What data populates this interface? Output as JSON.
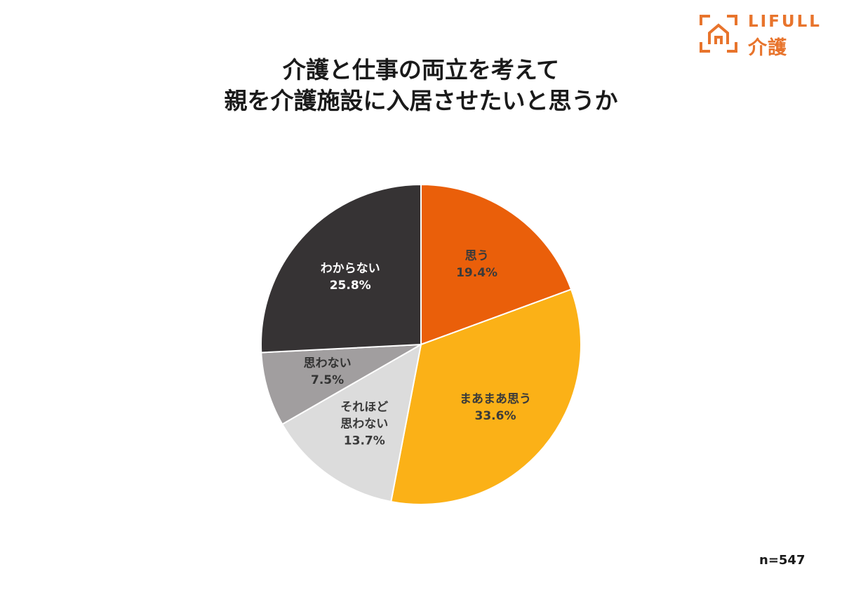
{
  "logo": {
    "brand_en": "LIFULL",
    "brand_jp": "介護",
    "color": "#e8742c",
    "icon": "house-frame-icon"
  },
  "title": {
    "line1": "介護と仕事の両立を考えて",
    "line2": "親を介護施設に入居させたいと思うか"
  },
  "sample_size": "n=547",
  "chart_data": {
    "type": "pie",
    "title": "介護と仕事の両立を考えて親を介護施設に入居させたいと思うか",
    "start": "12 o'clock",
    "direction": "clockwise",
    "slices": [
      {
        "label": [
          "思う"
        ],
        "value": 19.4,
        "value_label": "19.4%",
        "color": "#ea5f0a",
        "text_color": "#3a3a3a"
      },
      {
        "label": [
          "まあまあ思う"
        ],
        "value": 33.6,
        "value_label": "33.6%",
        "color": "#fbb117",
        "text_color": "#3a3a3a"
      },
      {
        "label": [
          "それほど",
          "思わない"
        ],
        "value": 13.7,
        "value_label": "13.7%",
        "color": "#dcdcdc",
        "text_color": "#3a3a3a"
      },
      {
        "label": [
          "思わない"
        ],
        "value": 7.5,
        "value_label": "7.5%",
        "color": "#a19e9f",
        "text_color": "#333333"
      },
      {
        "label": [
          "わからない"
        ],
        "value": 25.8,
        "value_label": "25.8%",
        "color": "#363334",
        "text_color": "#ffffff"
      }
    ]
  }
}
